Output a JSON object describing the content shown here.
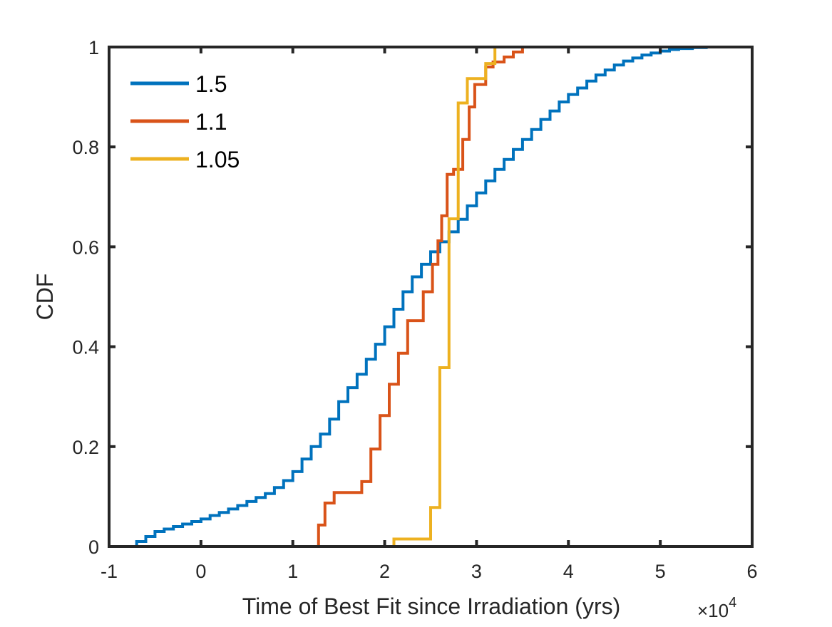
{
  "chart_data": {
    "type": "line",
    "subtype": "empirical-cdf-stairs",
    "title": "",
    "xlabel": "Time of Best Fit since Irradiation (yrs)",
    "ylabel": "CDF",
    "xlim": [
      -1,
      6
    ],
    "ylim": [
      0,
      1
    ],
    "x_scale_multiplier": "×10",
    "x_scale_exponent": "4",
    "x_ticks": [
      -1,
      0,
      1,
      2,
      3,
      4,
      5,
      6
    ],
    "x_tick_labels": [
      "-1",
      "0",
      "1",
      "2",
      "3",
      "4",
      "5",
      "6"
    ],
    "y_ticks": [
      0,
      0.2,
      0.4,
      0.6,
      0.8,
      1
    ],
    "y_tick_labels": [
      "0",
      "0.2",
      "0.4",
      "0.6",
      "0.8",
      "1"
    ],
    "grid": false,
    "box": true,
    "legend_position": "top-left",
    "series": [
      {
        "name": "1.5",
        "color": "#0072BD",
        "points": [
          [
            -0.72,
            0.0
          ],
          [
            -0.7,
            0.01
          ],
          [
            -0.6,
            0.02
          ],
          [
            -0.5,
            0.03
          ],
          [
            -0.4,
            0.035
          ],
          [
            -0.3,
            0.04
          ],
          [
            -0.2,
            0.045
          ],
          [
            -0.1,
            0.05
          ],
          [
            0.0,
            0.055
          ],
          [
            0.1,
            0.062
          ],
          [
            0.2,
            0.068
          ],
          [
            0.3,
            0.075
          ],
          [
            0.4,
            0.082
          ],
          [
            0.5,
            0.09
          ],
          [
            0.6,
            0.098
          ],
          [
            0.7,
            0.106
          ],
          [
            0.8,
            0.118
          ],
          [
            0.9,
            0.132
          ],
          [
            1.0,
            0.15
          ],
          [
            1.1,
            0.175
          ],
          [
            1.2,
            0.2
          ],
          [
            1.3,
            0.225
          ],
          [
            1.4,
            0.255
          ],
          [
            1.5,
            0.29
          ],
          [
            1.6,
            0.318
          ],
          [
            1.7,
            0.345
          ],
          [
            1.8,
            0.375
          ],
          [
            1.9,
            0.405
          ],
          [
            2.0,
            0.44
          ],
          [
            2.1,
            0.475
          ],
          [
            2.2,
            0.51
          ],
          [
            2.3,
            0.54
          ],
          [
            2.4,
            0.565
          ],
          [
            2.5,
            0.59
          ],
          [
            2.6,
            0.61
          ],
          [
            2.7,
            0.63
          ],
          [
            2.8,
            0.655
          ],
          [
            2.9,
            0.682
          ],
          [
            3.0,
            0.708
          ],
          [
            3.1,
            0.732
          ],
          [
            3.2,
            0.755
          ],
          [
            3.3,
            0.775
          ],
          [
            3.4,
            0.795
          ],
          [
            3.5,
            0.815
          ],
          [
            3.6,
            0.835
          ],
          [
            3.7,
            0.855
          ],
          [
            3.8,
            0.872
          ],
          [
            3.9,
            0.89
          ],
          [
            4.0,
            0.905
          ],
          [
            4.1,
            0.918
          ],
          [
            4.2,
            0.932
          ],
          [
            4.3,
            0.944
          ],
          [
            4.4,
            0.954
          ],
          [
            4.5,
            0.964
          ],
          [
            4.6,
            0.972
          ],
          [
            4.7,
            0.978
          ],
          [
            4.8,
            0.984
          ],
          [
            4.9,
            0.988
          ],
          [
            5.0,
            0.992
          ],
          [
            5.1,
            0.995
          ],
          [
            5.2,
            0.997
          ],
          [
            5.35,
            0.999
          ],
          [
            5.5,
            1.0
          ],
          [
            5.7,
            1.0
          ]
        ]
      },
      {
        "name": "1.1",
        "color": "#D95319",
        "points": [
          [
            1.22,
            0.0
          ],
          [
            1.28,
            0.0
          ],
          [
            1.28,
            0.043
          ],
          [
            1.35,
            0.043
          ],
          [
            1.35,
            0.087
          ],
          [
            1.45,
            0.087
          ],
          [
            1.45,
            0.108
          ],
          [
            1.75,
            0.108
          ],
          [
            1.75,
            0.13
          ],
          [
            1.85,
            0.13
          ],
          [
            1.85,
            0.195
          ],
          [
            1.95,
            0.195
          ],
          [
            1.95,
            0.262
          ],
          [
            2.05,
            0.262
          ],
          [
            2.05,
            0.325
          ],
          [
            2.15,
            0.325
          ],
          [
            2.15,
            0.387
          ],
          [
            2.25,
            0.387
          ],
          [
            2.25,
            0.452
          ],
          [
            2.42,
            0.452
          ],
          [
            2.42,
            0.51
          ],
          [
            2.52,
            0.51
          ],
          [
            2.52,
            0.565
          ],
          [
            2.58,
            0.565
          ],
          [
            2.58,
            0.612
          ],
          [
            2.62,
            0.612
          ],
          [
            2.62,
            0.662
          ],
          [
            2.68,
            0.662
          ],
          [
            2.68,
            0.745
          ],
          [
            2.75,
            0.745
          ],
          [
            2.75,
            0.755
          ],
          [
            2.85,
            0.755
          ],
          [
            2.85,
            0.815
          ],
          [
            2.92,
            0.815
          ],
          [
            2.92,
            0.88
          ],
          [
            2.98,
            0.88
          ],
          [
            2.98,
            0.925
          ],
          [
            3.1,
            0.925
          ],
          [
            3.1,
            0.96
          ],
          [
            3.18,
            0.96
          ],
          [
            3.18,
            0.97
          ],
          [
            3.3,
            0.97
          ],
          [
            3.3,
            0.98
          ],
          [
            3.4,
            0.98
          ],
          [
            3.4,
            0.99
          ],
          [
            3.5,
            0.99
          ],
          [
            3.5,
            1.0
          ]
        ]
      },
      {
        "name": "1.05",
        "color": "#EDB120",
        "points": [
          [
            2.1,
            0.0
          ],
          [
            2.1,
            0.015
          ],
          [
            2.5,
            0.015
          ],
          [
            2.5,
            0.078
          ],
          [
            2.6,
            0.078
          ],
          [
            2.6,
            0.358
          ],
          [
            2.7,
            0.358
          ],
          [
            2.7,
            0.656
          ],
          [
            2.8,
            0.656
          ],
          [
            2.8,
            0.888
          ],
          [
            2.9,
            0.888
          ],
          [
            2.9,
            0.937
          ],
          [
            3.1,
            0.937
          ],
          [
            3.1,
            0.967
          ],
          [
            3.2,
            0.967
          ],
          [
            3.2,
            1.0
          ]
        ]
      }
    ]
  }
}
